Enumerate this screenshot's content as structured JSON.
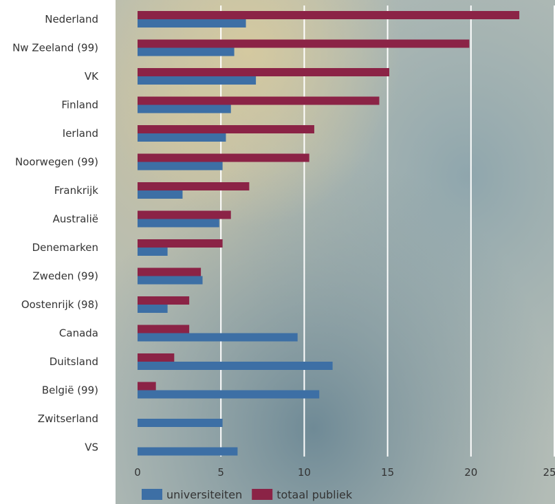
{
  "chart_data": {
    "type": "bar",
    "orientation": "horizontal",
    "title": "",
    "xlabel": "",
    "ylabel": "",
    "xlim": [
      0,
      25
    ],
    "xticks": [
      0,
      5,
      10,
      15,
      20,
      25
    ],
    "grid": true,
    "legend_position": "bottom-left",
    "categories": [
      "Nederland",
      "Nw Zeeland (99)",
      "VK",
      "Finland",
      "Ierland",
      "Noorwegen (99)",
      "Frankrijk",
      "Australië",
      "Denemarken",
      "Zweden (99)",
      "Oostenrijk (98)",
      "Canada",
      "Duitsland",
      "België (99)",
      "Zwitserland",
      "VS"
    ],
    "series": [
      {
        "name": "totaal publiek",
        "color": "#8b2346",
        "values": [
          22.9,
          19.9,
          15.1,
          14.5,
          10.6,
          10.3,
          6.7,
          5.6,
          5.1,
          3.8,
          3.1,
          3.1,
          2.2,
          1.1,
          null,
          null
        ]
      },
      {
        "name": "universiteiten",
        "color": "#3d6fa5",
        "values": [
          6.5,
          5.8,
          7.1,
          5.6,
          5.3,
          5.1,
          2.7,
          4.9,
          1.8,
          3.9,
          1.8,
          9.6,
          11.7,
          10.9,
          5.1,
          6.0
        ]
      }
    ],
    "legend": [
      {
        "name": "universiteiten",
        "color": "#3d6fa5"
      },
      {
        "name": "totaal publiek",
        "color": "#8b2346"
      }
    ]
  }
}
